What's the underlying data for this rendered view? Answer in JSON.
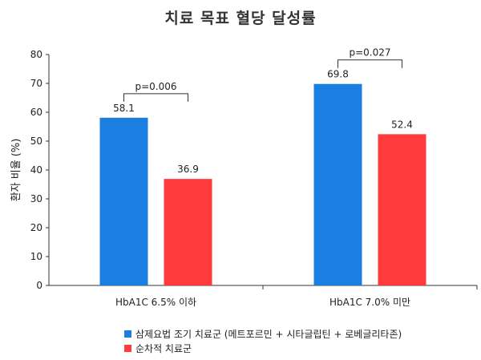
{
  "chart_data": {
    "type": "bar",
    "title": "치료 목표 혈당 달성률",
    "ylabel": "환자 비율 (%)",
    "xlabel": "",
    "ylim": [
      0,
      80
    ],
    "yticks": [
      0,
      10,
      20,
      30,
      40,
      50,
      60,
      70,
      80
    ],
    "yticks_labels": [
      "0",
      "10",
      "20",
      "30",
      "40",
      "50",
      "60",
      "70",
      "80"
    ],
    "categories": [
      "HbA1C 6.5% 이하",
      "HbA1C 7.0% 미만"
    ],
    "series": [
      {
        "name": "삼제요법 조기 치료군 (메트포르민 + 시타글립틴 + 로베글리타존)",
        "color": "#1a7fe0",
        "values": [
          58.1,
          69.8
        ],
        "labels": [
          "58.1",
          "69.8"
        ]
      },
      {
        "name": "순차적 치료군",
        "color": "#ff3b3b",
        "values": [
          36.9,
          52.4
        ],
        "labels": [
          "36.9",
          "52.4"
        ]
      }
    ],
    "annotations": [
      {
        "category_index": 0,
        "text": "p=0.006"
      },
      {
        "category_index": 1,
        "text": "p=0.027"
      }
    ],
    "grid": false,
    "legend_position": "bottom-left"
  }
}
